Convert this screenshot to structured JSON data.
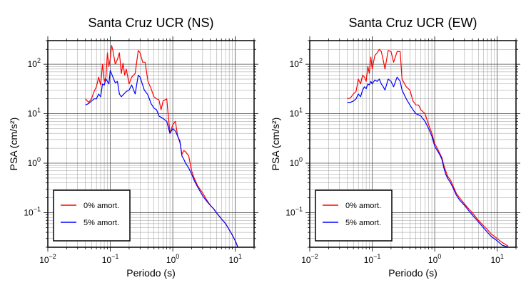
{
  "chart_data": [
    {
      "type": "line",
      "title": "Santa Cruz UCR (NS)",
      "xlabel": "Periodo (s)",
      "ylabel": "PSA (cm/s²)",
      "xscale": "log",
      "yscale": "log",
      "xlim": [
        0.01,
        20
      ],
      "ylim": [
        0.02,
        300
      ],
      "x_ticks": [
        0.01,
        0.1,
        1,
        10
      ],
      "y_ticks": [
        0.1,
        1,
        10,
        100
      ],
      "grid": true,
      "legend_position": "bottom-left",
      "series": [
        {
          "name": "0% amort.",
          "color": "#ff0000",
          "x": [
            0.04,
            0.045,
            0.05,
            0.055,
            0.06,
            0.065,
            0.07,
            0.075,
            0.08,
            0.085,
            0.09,
            0.095,
            0.1,
            0.105,
            0.11,
            0.12,
            0.13,
            0.14,
            0.15,
            0.16,
            0.17,
            0.18,
            0.2,
            0.22,
            0.25,
            0.28,
            0.3,
            0.33,
            0.36,
            0.4,
            0.45,
            0.5,
            0.55,
            0.6,
            0.65,
            0.7,
            0.8,
            0.9,
            1.0,
            1.1,
            1.2,
            1.3,
            1.4,
            1.5,
            1.6,
            1.8,
            2.0,
            2.2,
            2.5,
            3.0,
            3.5,
            4.0,
            4.5,
            5.0,
            6.0,
            7.0,
            8.0,
            9.0,
            10.0,
            11.0
          ],
          "y": [
            20,
            17,
            20,
            28,
            35,
            55,
            38,
            100,
            45,
            55,
            170,
            90,
            130,
            240,
            190,
            100,
            125,
            170,
            65,
            105,
            60,
            80,
            40,
            55,
            65,
            190,
            170,
            110,
            110,
            45,
            32,
            22,
            20,
            19,
            12,
            18,
            20,
            4,
            6,
            7,
            3.5,
            2.6,
            1.5,
            1.8,
            1.7,
            1.4,
            0.7,
            0.5,
            0.35,
            0.25,
            0.18,
            0.14,
            0.12,
            0.1,
            0.075,
            0.06,
            0.045,
            0.035,
            0.027,
            0.02
          ]
        },
        {
          "name": "5% amort.",
          "color": "#0000ff",
          "x": [
            0.04,
            0.045,
            0.05,
            0.055,
            0.06,
            0.065,
            0.07,
            0.075,
            0.08,
            0.085,
            0.09,
            0.095,
            0.1,
            0.11,
            0.12,
            0.13,
            0.14,
            0.15,
            0.16,
            0.18,
            0.2,
            0.22,
            0.25,
            0.28,
            0.3,
            0.35,
            0.4,
            0.45,
            0.5,
            0.55,
            0.6,
            0.7,
            0.8,
            0.9,
            1.0,
            1.1,
            1.2,
            1.3,
            1.4,
            1.5,
            1.6,
            1.8,
            2.0,
            2.2,
            2.5,
            3.0,
            3.5,
            4.0,
            4.5,
            5.0,
            6.0,
            7.0,
            8.0,
            9.0,
            10.0,
            11.0
          ],
          "y": [
            15,
            16,
            18,
            20,
            20,
            25,
            22,
            40,
            38,
            50,
            45,
            40,
            75,
            55,
            42,
            45,
            25,
            22,
            24,
            28,
            30,
            38,
            25,
            60,
            55,
            30,
            24,
            16,
            13,
            12,
            9,
            8,
            7,
            4,
            5,
            4.5,
            3.5,
            2.8,
            1.4,
            1.2,
            1.0,
            0.8,
            0.6,
            0.45,
            0.33,
            0.22,
            0.17,
            0.14,
            0.12,
            0.1,
            0.075,
            0.06,
            0.045,
            0.035,
            0.027,
            0.02
          ]
        }
      ]
    },
    {
      "type": "line",
      "title": "Santa Cruz UCR (EW)",
      "xlabel": "Periodo (s)",
      "ylabel": "PSA (cm/s²)",
      "xscale": "log",
      "yscale": "log",
      "xlim": [
        0.01,
        20
      ],
      "ylim": [
        0.02,
        300
      ],
      "x_ticks": [
        0.01,
        0.1,
        1,
        10
      ],
      "y_ticks": [
        0.1,
        1,
        10,
        100
      ],
      "grid": true,
      "legend_position": "bottom-left",
      "series": [
        {
          "name": "0% amort.",
          "color": "#ff0000",
          "x": [
            0.04,
            0.045,
            0.05,
            0.055,
            0.06,
            0.065,
            0.07,
            0.075,
            0.08,
            0.085,
            0.09,
            0.095,
            0.1,
            0.11,
            0.12,
            0.13,
            0.14,
            0.15,
            0.16,
            0.18,
            0.2,
            0.22,
            0.25,
            0.28,
            0.3,
            0.35,
            0.4,
            0.45,
            0.5,
            0.55,
            0.6,
            0.7,
            0.8,
            0.9,
            1.0,
            1.1,
            1.2,
            1.3,
            1.4,
            1.5,
            1.6,
            1.8,
            2.0,
            2.2,
            2.5,
            3.0,
            3.5,
            4.0,
            5.0,
            6.0,
            7.0,
            8.0,
            10.0,
            12.0,
            15.0
          ],
          "y": [
            20,
            21,
            25,
            28,
            50,
            40,
            60,
            55,
            45,
            90,
            65,
            140,
            80,
            150,
            170,
            200,
            180,
            120,
            80,
            190,
            180,
            110,
            180,
            180,
            50,
            35,
            30,
            18,
            15,
            15,
            12,
            10,
            6,
            4,
            2.5,
            2,
            1.6,
            1.3,
            0.9,
            0.7,
            0.55,
            0.45,
            0.33,
            0.25,
            0.2,
            0.15,
            0.12,
            0.1,
            0.07,
            0.055,
            0.045,
            0.037,
            0.03,
            0.025,
            0.021
          ]
        },
        {
          "name": "5% amort.",
          "color": "#0000ff",
          "x": [
            0.04,
            0.045,
            0.05,
            0.055,
            0.06,
            0.065,
            0.07,
            0.075,
            0.08,
            0.085,
            0.09,
            0.095,
            0.1,
            0.11,
            0.12,
            0.13,
            0.14,
            0.15,
            0.16,
            0.18,
            0.2,
            0.22,
            0.25,
            0.28,
            0.3,
            0.35,
            0.4,
            0.45,
            0.5,
            0.55,
            0.6,
            0.7,
            0.8,
            0.9,
            1.0,
            1.1,
            1.2,
            1.3,
            1.4,
            1.5,
            1.6,
            1.8,
            2.0,
            2.2,
            2.5,
            3.0,
            3.5,
            4.0,
            5.0,
            6.0,
            7.0,
            8.0,
            10.0,
            12.0,
            15.0
          ],
          "y": [
            17,
            17,
            18,
            20,
            25,
            22,
            30,
            35,
            32,
            40,
            38,
            45,
            40,
            48,
            45,
            50,
            40,
            35,
            30,
            50,
            45,
            35,
            55,
            45,
            30,
            20,
            15,
            12,
            10,
            9.5,
            9,
            7,
            5,
            3.5,
            2.2,
            1.8,
            1.5,
            1.2,
            0.8,
            0.6,
            0.5,
            0.4,
            0.3,
            0.23,
            0.18,
            0.14,
            0.11,
            0.09,
            0.065,
            0.05,
            0.04,
            0.033,
            0.027,
            0.022,
            0.02
          ]
        }
      ]
    }
  ]
}
